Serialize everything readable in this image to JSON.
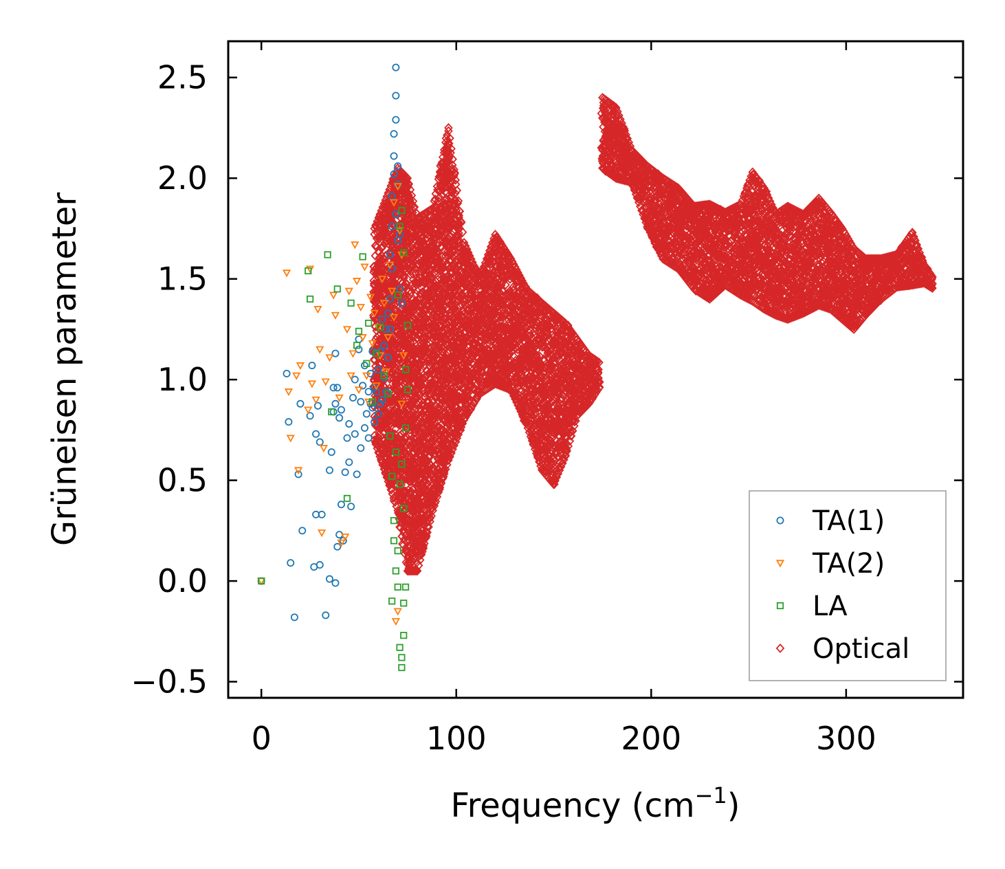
{
  "chart_data": {
    "type": "scatter",
    "title": "",
    "xlabel": "Frequency (cm",
    "xlabel_sup": "−1",
    "xlabel_close": ")",
    "ylabel": "Grüneisen parameter",
    "xlim": [
      -17,
      360
    ],
    "ylim": [
      -0.58,
      2.68
    ],
    "xticks": [
      0,
      100,
      200,
      300
    ],
    "xtick_labels": [
      "0",
      "100",
      "200",
      "300"
    ],
    "yticks": [
      -0.5,
      0.0,
      0.5,
      1.0,
      1.5,
      2.0,
      2.5
    ],
    "ytick_labels": [
      "−0.5",
      "0.0",
      "0.5",
      "1.0",
      "1.5",
      "2.0",
      "2.5"
    ],
    "grid": false,
    "legend_position": "bottom-right",
    "series": [
      {
        "name": "TA(1)",
        "marker": "circle",
        "color": "#1f77b4",
        "points": [
          [
            0,
            0.0
          ],
          [
            13,
            1.03
          ],
          [
            14,
            0.79
          ],
          [
            15,
            0.09
          ],
          [
            17,
            -0.18
          ],
          [
            19,
            0.53
          ],
          [
            20,
            0.88
          ],
          [
            21,
            0.25
          ],
          [
            25,
            0.82
          ],
          [
            26,
            1.07
          ],
          [
            27,
            0.07
          ],
          [
            28,
            0.33
          ],
          [
            28,
            0.73
          ],
          [
            29,
            0.87
          ],
          [
            30,
            0.08
          ],
          [
            30,
            0.69
          ],
          [
            31,
            0.33
          ],
          [
            33,
            -0.17
          ],
          [
            35,
            0.01
          ],
          [
            35,
            0.55
          ],
          [
            36,
            0.64
          ],
          [
            37,
            0.96
          ],
          [
            37,
            0.84
          ],
          [
            38,
            1.13
          ],
          [
            38,
            0.88
          ],
          [
            38,
            -0.01
          ],
          [
            39,
            0.17
          ],
          [
            39,
            0.96
          ],
          [
            40,
            0.81
          ],
          [
            40,
            0.23
          ],
          [
            41,
            0.38
          ],
          [
            41,
            0.85
          ],
          [
            42,
            0.2
          ],
          [
            43,
            0.54
          ],
          [
            44,
            0.71
          ],
          [
            45,
            0.59
          ],
          [
            45,
            0.78
          ],
          [
            46,
            0.37
          ],
          [
            47,
            0.91
          ],
          [
            48,
            0.73
          ],
          [
            48,
            1.0
          ],
          [
            49,
            0.53
          ],
          [
            50,
            1.15
          ],
          [
            50,
            1.2
          ],
          [
            51,
            0.89
          ],
          [
            51,
            0.66
          ],
          [
            52,
            0.97
          ],
          [
            53,
            0.76
          ],
          [
            53,
            1.07
          ],
          [
            54,
            0.83
          ],
          [
            55,
            0.94
          ],
          [
            55,
            0.71
          ],
          [
            56,
            1.03
          ],
          [
            56,
            0.88
          ],
          [
            57,
            1.14
          ],
          [
            57,
            0.86
          ],
          [
            58,
            0.79
          ],
          [
            58,
            0.96
          ],
          [
            59,
            0.94
          ],
          [
            60,
            1.05
          ],
          [
            60,
            0.83
          ],
          [
            61,
            0.88
          ],
          [
            61,
            1.14
          ],
          [
            62,
            0.9
          ],
          [
            62,
            1.3
          ],
          [
            63,
            1.17
          ],
          [
            63,
            1.01
          ],
          [
            64,
            1.25
          ],
          [
            64,
            0.94
          ],
          [
            65,
            1.11
          ],
          [
            65,
            1.33
          ],
          [
            66,
            1.25
          ],
          [
            66,
            1.4
          ],
          [
            66,
            1.62
          ],
          [
            67,
            1.55
          ],
          [
            67,
            1.76
          ],
          [
            67,
            1.91
          ],
          [
            68,
            2.02
          ],
          [
            68,
            2.11
          ],
          [
            68,
            2.22
          ],
          [
            69,
            2.29
          ],
          [
            69,
            2.41
          ],
          [
            69,
            2.55
          ],
          [
            69,
            1.82
          ],
          [
            70,
            1.97
          ],
          [
            70,
            1.69
          ],
          [
            70,
            2.06
          ],
          [
            71,
            1.45
          ],
          [
            71,
            1.72
          ],
          [
            72,
            1.38
          ]
        ]
      },
      {
        "name": "TA(2)",
        "marker": "triangle",
        "color": "#ff7f0e",
        "points": [
          [
            0,
            0.0
          ],
          [
            13,
            1.53
          ],
          [
            14,
            0.94
          ],
          [
            15,
            0.71
          ],
          [
            18,
            1.02
          ],
          [
            19,
            0.55
          ],
          [
            20,
            1.07
          ],
          [
            24,
            0.85
          ],
          [
            25,
            1.55
          ],
          [
            26,
            0.98
          ],
          [
            28,
            0.9
          ],
          [
            29,
            1.35
          ],
          [
            30,
            1.15
          ],
          [
            31,
            0.24
          ],
          [
            32,
            0.66
          ],
          [
            33,
            0.99
          ],
          [
            35,
            1.11
          ],
          [
            37,
            1.42
          ],
          [
            38,
            1.32
          ],
          [
            40,
            0.91
          ],
          [
            41,
            0.19
          ],
          [
            43,
            0.22
          ],
          [
            44,
            1.25
          ],
          [
            45,
            1.44
          ],
          [
            46,
            1.02
          ],
          [
            47,
            1.13
          ],
          [
            48,
            1.67
          ],
          [
            49,
            1.49
          ],
          [
            50,
            0.95
          ],
          [
            51,
            1.36
          ],
          [
            52,
            1.21
          ],
          [
            53,
            1.56
          ],
          [
            54,
            1.02
          ],
          [
            55,
            0.89
          ],
          [
            56,
            1.41
          ],
          [
            57,
            1.18
          ],
          [
            58,
            1.33
          ],
          [
            59,
            0.97
          ],
          [
            60,
            1.26
          ],
          [
            61,
            1.12
          ],
          [
            62,
            1.5
          ],
          [
            63,
            1.38
          ],
          [
            64,
            1.04
          ],
          [
            65,
            1.21
          ],
          [
            66,
            1.57
          ],
          [
            67,
            1.44
          ],
          [
            68,
            1.88
          ],
          [
            68,
            1.31
          ],
          [
            69,
            -0.2
          ],
          [
            70,
            -0.15
          ],
          [
            70,
            1.96
          ],
          [
            71,
            1.74
          ],
          [
            72,
            1.62
          ],
          [
            72,
            0.88
          ],
          [
            73,
            1.12
          ]
        ]
      },
      {
        "name": "LA",
        "marker": "square",
        "color": "#2ca02c",
        "points": [
          [
            0,
            0.0
          ],
          [
            24,
            1.54
          ],
          [
            25,
            1.4
          ],
          [
            34,
            1.62
          ],
          [
            36,
            0.84
          ],
          [
            39,
            1.45
          ],
          [
            44,
            0.41
          ],
          [
            46,
            1.38
          ],
          [
            49,
            1.17
          ],
          [
            50,
            1.24
          ],
          [
            52,
            1.61
          ],
          [
            54,
            1.08
          ],
          [
            55,
            1.28
          ],
          [
            57,
            0.89
          ],
          [
            59,
            1.13
          ],
          [
            61,
            1.26
          ],
          [
            63,
            1.02
          ],
          [
            65,
            0.93
          ],
          [
            66,
            0.72
          ],
          [
            67,
            0.52
          ],
          [
            67,
            -0.1
          ],
          [
            68,
            0.3
          ],
          [
            68,
            0.2
          ],
          [
            69,
            0.05
          ],
          [
            69,
            0.64
          ],
          [
            70,
            -0.03
          ],
          [
            70,
            1.42
          ],
          [
            70,
            0.15
          ],
          [
            71,
            0.48
          ],
          [
            71,
            1.76
          ],
          [
            71,
            -0.33
          ],
          [
            72,
            -0.43
          ],
          [
            72,
            -0.38
          ],
          [
            72,
            0.58
          ],
          [
            72,
            1.84
          ],
          [
            73,
            -0.27
          ],
          [
            73,
            0.36
          ],
          [
            73,
            -0.11
          ],
          [
            73,
            1.63
          ],
          [
            74,
            0.76
          ],
          [
            74,
            -0.03
          ],
          [
            74,
            1.05
          ],
          [
            75,
            1.27
          ],
          [
            75,
            0.95
          ]
        ]
      },
      {
        "name": "Optical",
        "marker": "diamond",
        "color": "#d62728",
        "band_envelope": [
          [
            58,
            0.7,
            1.75
          ],
          [
            70,
            0.35,
            2.05
          ],
          [
            75,
            0.05,
            2.0
          ],
          [
            80,
            0.05,
            1.8
          ],
          [
            88,
            0.35,
            1.85
          ],
          [
            96,
            0.6,
            2.25
          ],
          [
            104,
            0.8,
            1.68
          ],
          [
            112,
            0.93,
            1.5
          ],
          [
            120,
            0.98,
            1.72
          ],
          [
            128,
            0.95,
            1.6
          ],
          [
            136,
            0.78,
            1.45
          ],
          [
            144,
            0.55,
            1.38
          ],
          [
            150,
            0.48,
            1.33
          ],
          [
            156,
            0.62,
            1.28
          ],
          [
            162,
            0.82,
            1.2
          ],
          [
            168,
            0.88,
            1.12
          ],
          [
            174,
            0.97,
            1.08
          ],
          [
            175,
            2.05,
            2.4
          ],
          [
            182,
            2.0,
            2.35
          ],
          [
            190,
            1.98,
            2.14
          ],
          [
            198,
            1.76,
            2.06
          ],
          [
            206,
            1.6,
            2.0
          ],
          [
            214,
            1.55,
            1.95
          ],
          [
            222,
            1.45,
            1.86
          ],
          [
            230,
            1.4,
            1.87
          ],
          [
            238,
            1.47,
            1.83
          ],
          [
            246,
            1.42,
            1.87
          ],
          [
            252,
            1.39,
            2.03
          ],
          [
            258,
            1.35,
            1.95
          ],
          [
            264,
            1.32,
            1.82
          ],
          [
            270,
            1.3,
            1.86
          ],
          [
            278,
            1.33,
            1.82
          ],
          [
            286,
            1.37,
            1.9
          ],
          [
            292,
            1.35,
            1.83
          ],
          [
            298,
            1.3,
            1.75
          ],
          [
            304,
            1.25,
            1.65
          ],
          [
            310,
            1.32,
            1.6
          ],
          [
            318,
            1.4,
            1.6
          ],
          [
            326,
            1.46,
            1.62
          ],
          [
            334,
            1.47,
            1.73
          ],
          [
            340,
            1.48,
            1.57
          ],
          [
            345,
            1.45,
            1.5
          ]
        ]
      }
    ]
  }
}
